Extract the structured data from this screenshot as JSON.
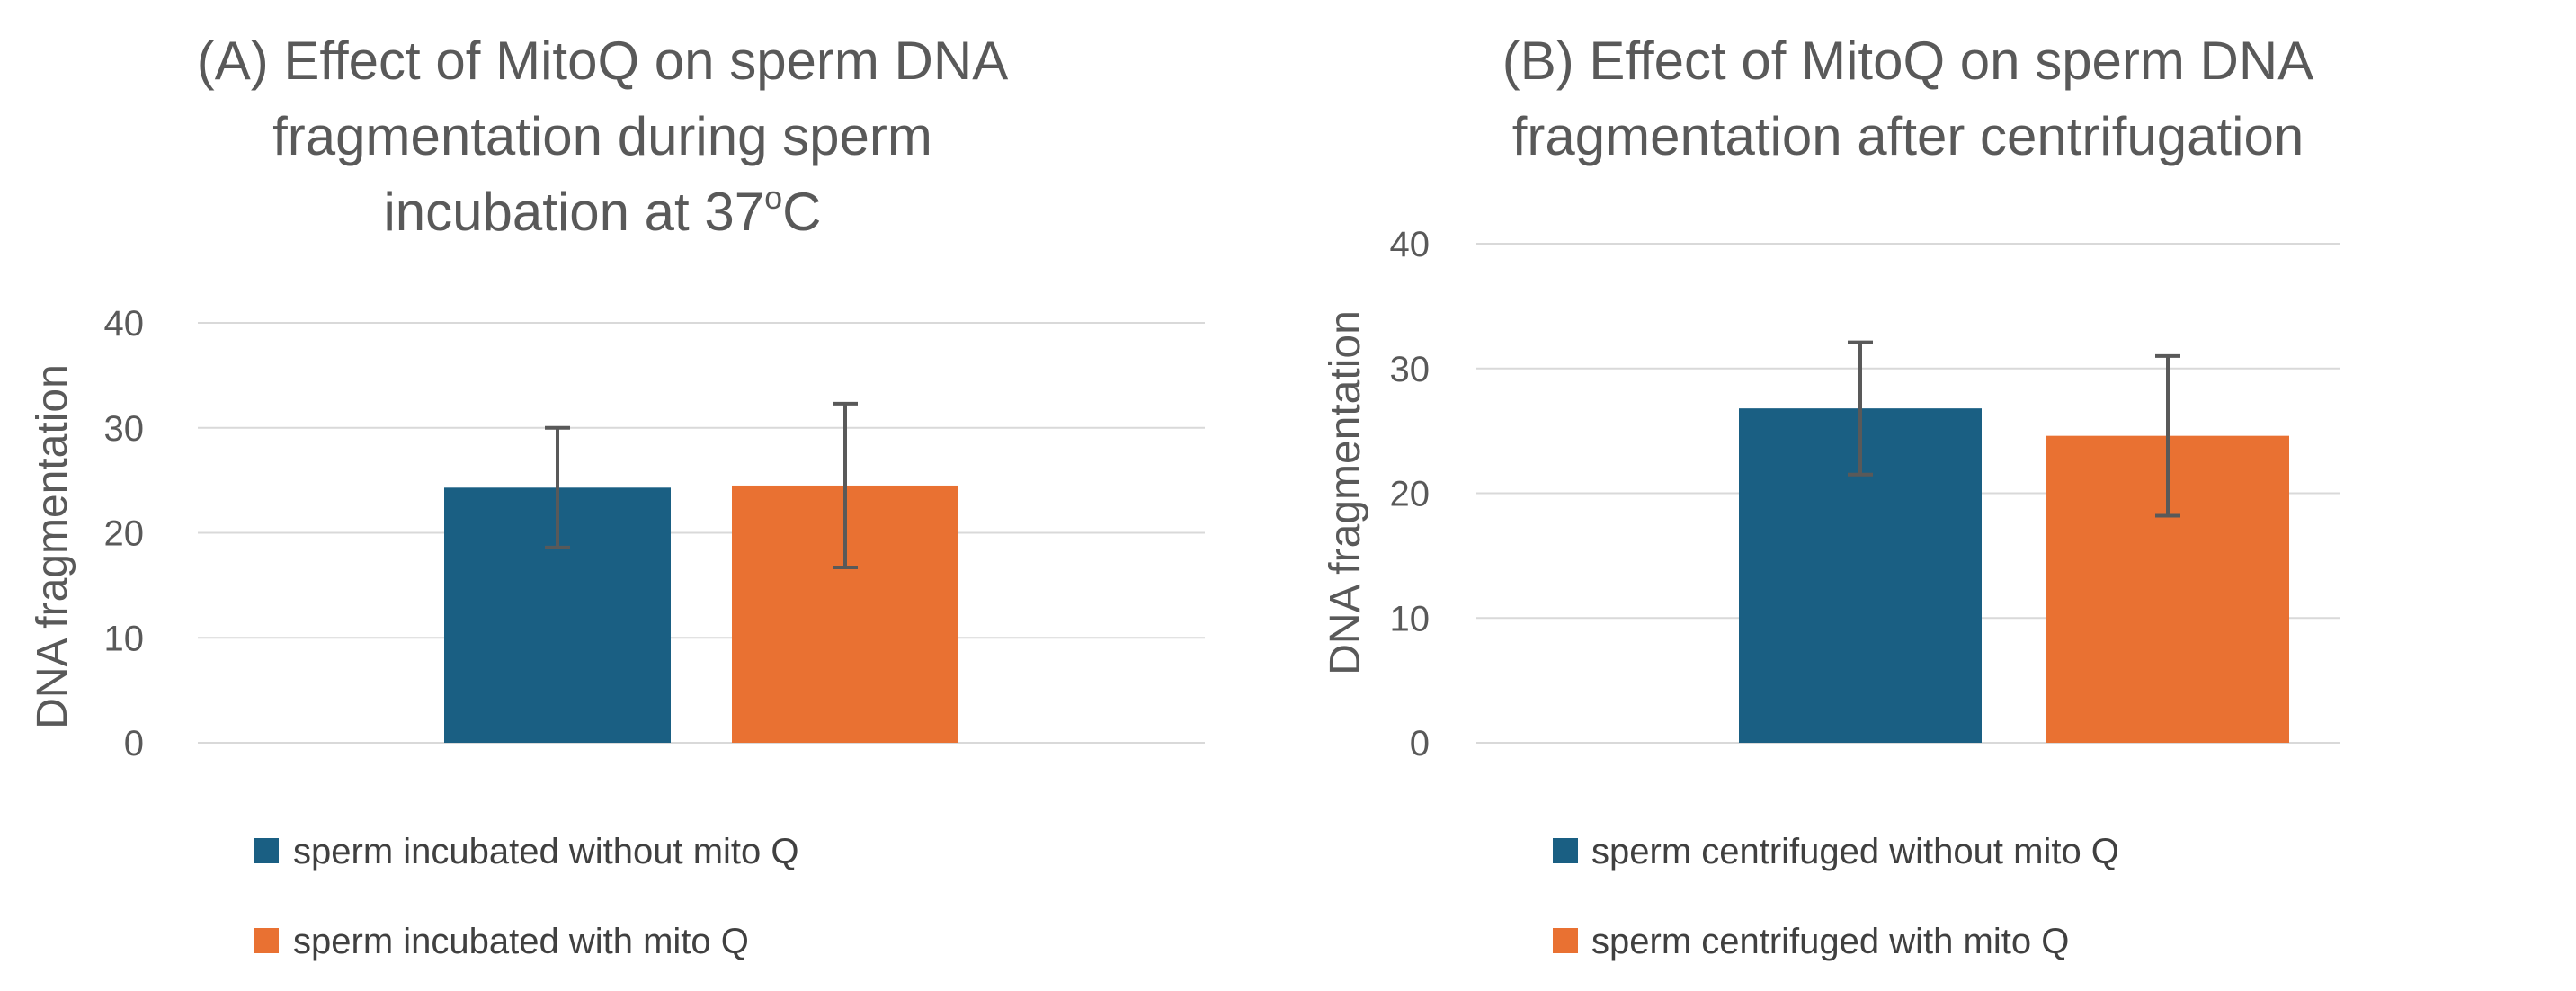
{
  "chart_data": [
    {
      "type": "bar",
      "panel": "A",
      "title": "(A) Effect of MitoQ on sperm DNA fragmentation during sperm incubation at 37ºC",
      "title_lines": [
        "(A) Effect of MitoQ on sperm DNA",
        "fragmentation during sperm",
        "incubation at 37",
        "o",
        "C"
      ],
      "xlabel": "",
      "ylabel": "DNA fragmentation",
      "ylim": [
        0,
        40
      ],
      "yticks": [
        0,
        10,
        20,
        30,
        40
      ],
      "grid": true,
      "legend_position": "bottom",
      "categories": [
        ""
      ],
      "series": [
        {
          "name": "sperm incubated without mito Q",
          "color": "#1a5f83",
          "values": [
            24.3
          ],
          "error": [
            5.7
          ]
        },
        {
          "name": "sperm incubated with mito Q",
          "color": "#e97132",
          "values": [
            24.5
          ],
          "error": [
            7.8
          ]
        }
      ]
    },
    {
      "type": "bar",
      "panel": "B",
      "title": "(B) Effect of MitoQ on sperm DNA fragmentation after centrifugation",
      "title_lines": [
        "(B) Effect of MitoQ on sperm DNA",
        "fragmentation after centrifugation"
      ],
      "xlabel": "",
      "ylabel": "DNA fragmentation",
      "ylim": [
        0,
        40
      ],
      "yticks": [
        0,
        10,
        20,
        30,
        40
      ],
      "grid": true,
      "legend_position": "bottom",
      "categories": [
        ""
      ],
      "series": [
        {
          "name": "sperm centrifuged without mito Q",
          "color": "#1a5f83",
          "values": [
            26.8
          ],
          "error": [
            5.3
          ]
        },
        {
          "name": "sperm centrifuged with mito Q",
          "color": "#e97132",
          "values": [
            24.6
          ],
          "error": [
            6.4
          ]
        }
      ]
    }
  ]
}
